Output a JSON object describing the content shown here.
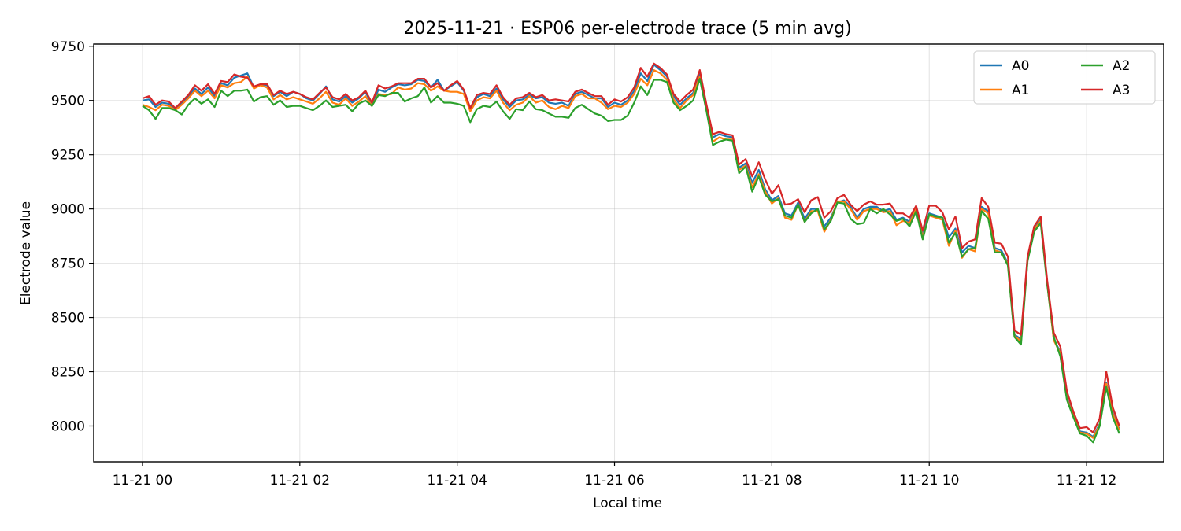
{
  "chart_data": {
    "type": "line",
    "title": "2025-11-21 · ESP06 per-electrode trace (5 min avg)",
    "xlabel": "Local time",
    "ylabel": "Electrode value",
    "x_unit": "hours",
    "xlim": [
      -0.62,
      12.98
    ],
    "ylim": [
      7835,
      9760
    ],
    "x_ticks": [
      {
        "value": 0,
        "label": "11-21 00"
      },
      {
        "value": 2,
        "label": "11-21 02"
      },
      {
        "value": 4,
        "label": "11-21 04"
      },
      {
        "value": 6,
        "label": "11-21 06"
      },
      {
        "value": 8,
        "label": "11-21 08"
      },
      {
        "value": 10,
        "label": "11-21 10"
      },
      {
        "value": 12,
        "label": "11-21 12"
      }
    ],
    "y_ticks": [
      8000,
      8250,
      8500,
      8750,
      9000,
      9250,
      9500,
      9750
    ],
    "grid": true,
    "legend": {
      "placement": "top-right",
      "columns": 2
    },
    "x": [
      0,
      0.0833,
      0.1667,
      0.25,
      0.3333,
      0.4167,
      0.5,
      0.5833,
      0.6667,
      0.75,
      0.8333,
      0.9167,
      1,
      1.0833,
      1.1667,
      1.25,
      1.3333,
      1.4167,
      1.5,
      1.5833,
      1.6667,
      1.75,
      1.8333,
      1.9167,
      2,
      2.0833,
      2.1667,
      2.25,
      2.3333,
      2.4167,
      2.5,
      2.5833,
      2.6667,
      2.75,
      2.8333,
      2.9167,
      3,
      3.0833,
      3.1667,
      3.25,
      3.3333,
      3.4167,
      3.5,
      3.5833,
      3.6667,
      3.75,
      3.8333,
      3.9167,
      4,
      4.0833,
      4.1667,
      4.25,
      4.3333,
      4.4167,
      4.5,
      4.5833,
      4.6667,
      4.75,
      4.8333,
      4.9167,
      5,
      5.0833,
      5.1667,
      5.25,
      5.3333,
      5.4167,
      5.5,
      5.5833,
      5.6667,
      5.75,
      5.8333,
      5.9167,
      6,
      6.0833,
      6.1667,
      6.25,
      6.3333,
      6.4167,
      6.5,
      6.5833,
      6.6667,
      6.75,
      6.8333,
      6.9167,
      7,
      7.0833,
      7.1667,
      7.25,
      7.3333,
      7.4167,
      7.5,
      7.5833,
      7.6667,
      7.75,
      7.8333,
      7.9167,
      8,
      8.0833,
      8.1667,
      8.25,
      8.3333,
      8.4167,
      8.5,
      8.5833,
      8.6667,
      8.75,
      8.8333,
      8.9167,
      9,
      9.0833,
      9.1667,
      9.25,
      9.3333,
      9.4167,
      9.5,
      9.5833,
      9.6667,
      9.75,
      9.8333,
      9.9167,
      10,
      10.0833,
      10.1667,
      10.25,
      10.3333,
      10.4167,
      10.5,
      10.5833,
      10.6667,
      10.75,
      10.8333,
      10.9167,
      11,
      11.0833,
      11.1667,
      11.25,
      11.3333,
      11.4167,
      11.5,
      11.5833,
      11.6667,
      11.75,
      11.8333,
      11.9167,
      12,
      12.0833,
      12.1667,
      12.25,
      12.3333,
      12.4167
    ],
    "series": [
      {
        "name": "A0",
        "color": "#1f77b4",
        "values": [
          9500,
          9505,
          9470,
          9490,
          9485,
          9460,
          9490,
          9520,
          9555,
          9530,
          9560,
          9520,
          9580,
          9570,
          9605,
          9615,
          9625,
          9560,
          9575,
          9570,
          9520,
          9540,
          9520,
          9540,
          9530,
          9510,
          9500,
          9530,
          9565,
          9505,
          9495,
          9520,
          9490,
          9510,
          9540,
          9480,
          9550,
          9540,
          9560,
          9575,
          9570,
          9575,
          9595,
          9590,
          9560,
          9595,
          9545,
          9565,
          9585,
          9545,
          9460,
          9515,
          9530,
          9520,
          9555,
          9505,
          9470,
          9500,
          9505,
          9525,
          9510,
          9515,
          9490,
          9485,
          9490,
          9475,
          9530,
          9540,
          9525,
          9510,
          9510,
          9470,
          9490,
          9480,
          9500,
          9545,
          9625,
          9590,
          9665,
          9640,
          9610,
          9520,
          9480,
          9510,
          9535,
          9625,
          9480,
          9330,
          9345,
          9335,
          9330,
          9190,
          9210,
          9120,
          9180,
          9090,
          9040,
          9060,
          8980,
          8970,
          9030,
          8955,
          9000,
          9000,
          8920,
          8960,
          9030,
          9040,
          9010,
          8960,
          9000,
          9010,
          9010,
          8990,
          9000,
          8950,
          8960,
          8940,
          9010,
          8880,
          8980,
          8970,
          8960,
          8870,
          8910,
          8800,
          8830,
          8820,
          9010,
          8990,
          8820,
          8810,
          8750,
          8420,
          8400,
          8770,
          8910,
          8950,
          8660,
          8400,
          8340,
          8130,
          8050,
          7975,
          7970,
          7950,
          8010,
          8200,
          8060,
          7985
        ]
      },
      {
        "name": "A1",
        "color": "#ff7f0e",
        "values": [
          9480,
          9470,
          9455,
          9480,
          9475,
          9455,
          9480,
          9510,
          9545,
          9520,
          9545,
          9510,
          9570,
          9560,
          9580,
          9585,
          9610,
          9555,
          9570,
          9560,
          9505,
          9525,
          9505,
          9515,
          9505,
          9495,
          9485,
          9510,
          9540,
          9490,
          9480,
          9510,
          9475,
          9495,
          9520,
          9475,
          9530,
          9525,
          9530,
          9560,
          9550,
          9555,
          9580,
          9575,
          9545,
          9565,
          9545,
          9540,
          9540,
          9530,
          9450,
          9500,
          9515,
          9510,
          9545,
          9490,
          9455,
          9480,
          9490,
          9520,
          9490,
          9500,
          9470,
          9460,
          9475,
          9465,
          9520,
          9530,
          9510,
          9510,
          9490,
          9460,
          9475,
          9470,
          9490,
          9530,
          9600,
          9570,
          9640,
          9625,
          9595,
          9505,
          9465,
          9500,
          9525,
          9610,
          9465,
          9310,
          9330,
          9320,
          9320,
          9180,
          9200,
          9100,
          9160,
          9080,
          9025,
          9050,
          8960,
          8950,
          9020,
          8940,
          8990,
          8990,
          8895,
          8950,
          9035,
          9035,
          9000,
          8950,
          8990,
          9000,
          9000,
          8985,
          8990,
          8925,
          8945,
          8935,
          9000,
          8870,
          8970,
          8960,
          8950,
          8830,
          8900,
          8775,
          8815,
          8805,
          9000,
          8980,
          8810,
          8800,
          8745,
          8415,
          8390,
          8765,
          8905,
          8945,
          8655,
          8395,
          8335,
          8125,
          8045,
          7970,
          7965,
          7945,
          8005,
          8195,
          8055,
          7980
        ]
      },
      {
        "name": "A2",
        "color": "#2ca02c",
        "values": [
          9475,
          9455,
          9415,
          9465,
          9465,
          9455,
          9435,
          9480,
          9510,
          9485,
          9505,
          9470,
          9545,
          9520,
          9545,
          9545,
          9550,
          9495,
          9515,
          9520,
          9480,
          9500,
          9470,
          9475,
          9475,
          9465,
          9455,
          9475,
          9500,
          9470,
          9475,
          9480,
          9450,
          9485,
          9500,
          9475,
          9525,
          9520,
          9535,
          9535,
          9495,
          9510,
          9520,
          9560,
          9490,
          9520,
          9490,
          9490,
          9485,
          9475,
          9400,
          9460,
          9475,
          9470,
          9495,
          9450,
          9415,
          9460,
          9455,
          9495,
          9460,
          9455,
          9440,
          9425,
          9425,
          9420,
          9465,
          9480,
          9460,
          9440,
          9430,
          9405,
          9410,
          9410,
          9430,
          9490,
          9565,
          9525,
          9595,
          9595,
          9585,
          9490,
          9455,
          9475,
          9500,
          9600,
          9455,
          9295,
          9310,
          9320,
          9315,
          9165,
          9195,
          9080,
          9150,
          9065,
          9035,
          9045,
          8970,
          8960,
          9020,
          8940,
          8980,
          9000,
          8905,
          8945,
          9030,
          9025,
          8955,
          8930,
          8935,
          9000,
          8980,
          9000,
          8975,
          8945,
          8955,
          8920,
          8990,
          8860,
          8975,
          8965,
          8960,
          8845,
          8890,
          8780,
          8815,
          8820,
          8990,
          8955,
          8800,
          8800,
          8740,
          8410,
          8375,
          8760,
          8895,
          8935,
          8650,
          8410,
          8320,
          8120,
          8040,
          7965,
          7955,
          7925,
          8000,
          8180,
          8040,
          7965
        ]
      },
      {
        "name": "A3",
        "color": "#d62728",
        "values": [
          9510,
          9520,
          9480,
          9500,
          9495,
          9465,
          9495,
          9525,
          9570,
          9545,
          9575,
          9530,
          9590,
          9585,
          9620,
          9610,
          9605,
          9565,
          9575,
          9575,
          9525,
          9545,
          9530,
          9540,
          9530,
          9515,
          9505,
          9535,
          9560,
          9515,
          9505,
          9530,
          9500,
          9515,
          9545,
          9490,
          9570,
          9555,
          9565,
          9580,
          9580,
          9580,
          9600,
          9600,
          9560,
          9580,
          9545,
          9570,
          9590,
          9550,
          9465,
          9525,
          9535,
          9530,
          9570,
          9515,
          9480,
          9510,
          9515,
          9535,
          9515,
          9525,
          9500,
          9505,
          9500,
          9495,
          9540,
          9550,
          9535,
          9520,
          9520,
          9480,
          9505,
          9495,
          9515,
          9560,
          9650,
          9610,
          9670,
          9650,
          9620,
          9530,
          9495,
          9525,
          9550,
          9640,
          9485,
          9345,
          9355,
          9345,
          9340,
          9205,
          9230,
          9150,
          9215,
          9135,
          9070,
          9110,
          9020,
          9025,
          9045,
          8985,
          9040,
          9055,
          8960,
          8990,
          9050,
          9065,
          9020,
          8990,
          9020,
          9035,
          9020,
          9020,
          9025,
          8980,
          8980,
          8960,
          9015,
          8900,
          9015,
          9015,
          8985,
          8905,
          8965,
          8820,
          8850,
          8860,
          9050,
          9010,
          8845,
          8840,
          8780,
          8440,
          8420,
          8780,
          8920,
          8965,
          8670,
          8430,
          8365,
          8160,
          8065,
          7990,
          7995,
          7970,
          8035,
          8250,
          8085,
          8000
        ]
      }
    ]
  }
}
